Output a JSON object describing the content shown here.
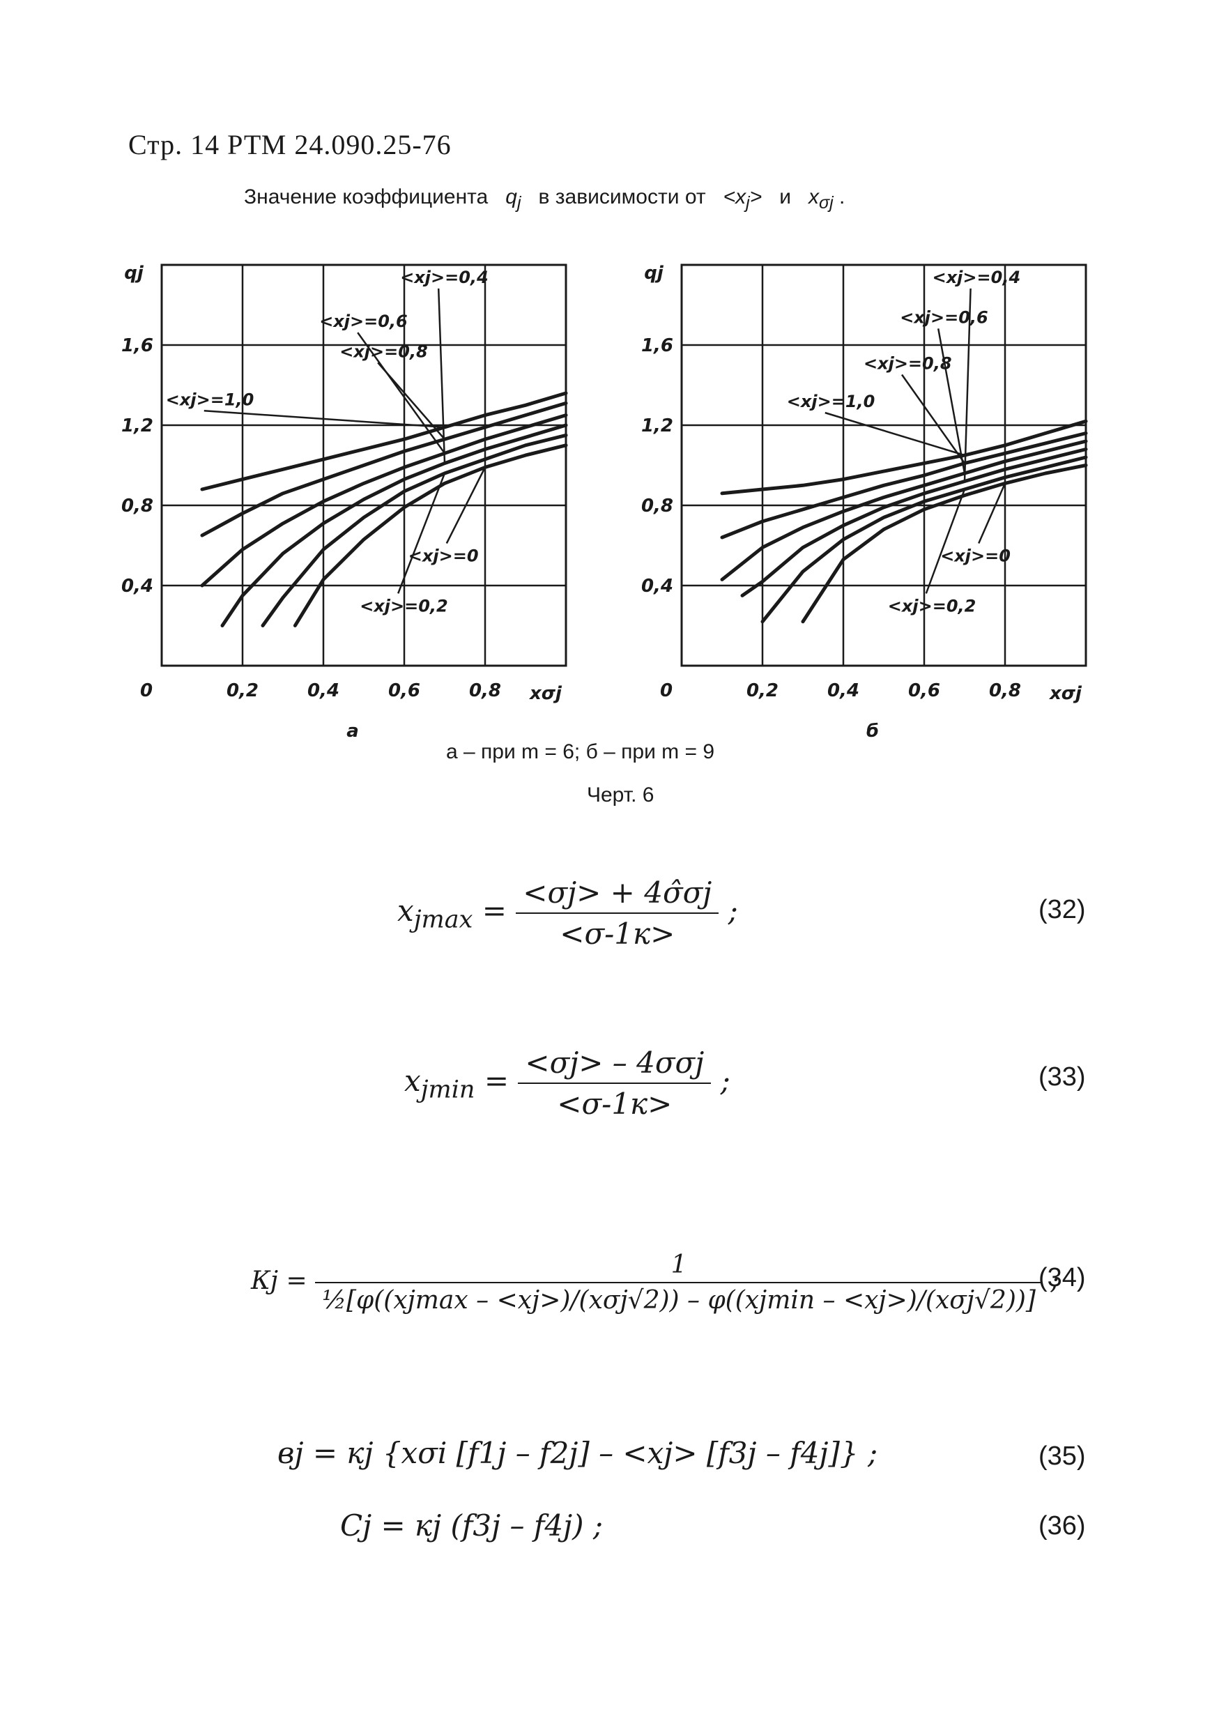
{
  "header": "Стр. 14 РТМ 24.090.25-76",
  "figure_title": {
    "prefix": "Значение коэффициента",
    "qj": "q",
    "qj_sub": "j",
    "middle": "в зависимости от",
    "xj": "<x",
    "xj_sub": "j",
    "xj_close": ">",
    "and": "и",
    "xs": "x",
    "xs_sub": "σj",
    "end": "."
  },
  "chart_data": [
    {
      "type": "line",
      "panel_label": "а",
      "ylabel": "qj",
      "xlabel": "xσj",
      "xlim": [
        0,
        1.0
      ],
      "ylim": [
        0,
        2.0
      ],
      "x_ticks": [
        "0",
        "0,2",
        "0,4",
        "0,6",
        "0,8"
      ],
      "y_ticks": [
        "0,4",
        "0,8",
        "1,2",
        "1,6"
      ],
      "grid": true,
      "series": [
        {
          "name": "<xj>=1,0",
          "x": [
            0.1,
            0.2,
            0.3,
            0.4,
            0.5,
            0.6,
            0.7,
            0.8,
            0.9,
            1.0
          ],
          "y": [
            0.88,
            0.93,
            0.98,
            1.03,
            1.08,
            1.13,
            1.19,
            1.25,
            1.3,
            1.36
          ]
        },
        {
          "name": "<xj>=0,8",
          "x": [
            0.1,
            0.2,
            0.3,
            0.4,
            0.5,
            0.6,
            0.7,
            0.8,
            0.9,
            1.0
          ],
          "y": [
            0.65,
            0.76,
            0.86,
            0.93,
            1.0,
            1.07,
            1.13,
            1.19,
            1.25,
            1.31
          ]
        },
        {
          "name": "<xj>=0,6",
          "x": [
            0.1,
            0.2,
            0.3,
            0.4,
            0.5,
            0.6,
            0.7,
            0.8,
            0.9,
            1.0
          ],
          "y": [
            0.4,
            0.58,
            0.71,
            0.82,
            0.91,
            0.99,
            1.06,
            1.13,
            1.19,
            1.25
          ]
        },
        {
          "name": "<xj>=0,4",
          "x": [
            0.15,
            0.2,
            0.3,
            0.4,
            0.5,
            0.6,
            0.7,
            0.8,
            0.9,
            1.0
          ],
          "y": [
            0.2,
            0.35,
            0.56,
            0.71,
            0.83,
            0.93,
            1.01,
            1.08,
            1.14,
            1.2
          ]
        },
        {
          "name": "<xj>=0,2",
          "x": [
            0.25,
            0.3,
            0.4,
            0.5,
            0.6,
            0.7,
            0.8,
            0.9,
            1.0
          ],
          "y": [
            0.2,
            0.34,
            0.58,
            0.74,
            0.87,
            0.96,
            1.03,
            1.1,
            1.15
          ]
        },
        {
          "name": "<xj>=0",
          "x": [
            0.33,
            0.4,
            0.5,
            0.6,
            0.7,
            0.8,
            0.9,
            1.0
          ],
          "y": [
            0.2,
            0.43,
            0.63,
            0.79,
            0.91,
            0.99,
            1.05,
            1.1
          ]
        }
      ],
      "annotations": [
        "<xj>=1,0",
        "<xj>=0,8",
        "<xj>=0,6",
        "<xj>=0,4",
        "<xj>=0",
        "<xj>=0,2"
      ]
    },
    {
      "type": "line",
      "panel_label": "б",
      "ylabel": "qj",
      "xlabel": "xσj",
      "xlim": [
        0,
        1.0
      ],
      "ylim": [
        0,
        2.0
      ],
      "x_ticks": [
        "0",
        "0,2",
        "0,4",
        "0,6",
        "0,8"
      ],
      "y_ticks": [
        "0,4",
        "0,8",
        "1,2",
        "1,6"
      ],
      "grid": true,
      "series": [
        {
          "name": "<xj>=1,0",
          "x": [
            0.1,
            0.2,
            0.3,
            0.4,
            0.5,
            0.6,
            0.7,
            0.8,
            0.9,
            1.0
          ],
          "y": [
            0.86,
            0.88,
            0.9,
            0.93,
            0.97,
            1.01,
            1.05,
            1.1,
            1.16,
            1.22
          ]
        },
        {
          "name": "<xj>=0,8",
          "x": [
            0.1,
            0.2,
            0.3,
            0.4,
            0.5,
            0.6,
            0.7,
            0.8,
            0.9,
            1.0
          ],
          "y": [
            0.64,
            0.72,
            0.78,
            0.84,
            0.9,
            0.95,
            1.01,
            1.06,
            1.11,
            1.16
          ]
        },
        {
          "name": "<xj>=0,6",
          "x": [
            0.1,
            0.2,
            0.3,
            0.4,
            0.5,
            0.6,
            0.7,
            0.8,
            0.9,
            1.0
          ],
          "y": [
            0.43,
            0.59,
            0.69,
            0.77,
            0.84,
            0.9,
            0.96,
            1.02,
            1.07,
            1.12
          ]
        },
        {
          "name": "<xj>=0,4",
          "x": [
            0.15,
            0.2,
            0.3,
            0.4,
            0.5,
            0.6,
            0.7,
            0.8,
            0.9,
            1.0
          ],
          "y": [
            0.35,
            0.42,
            0.59,
            0.7,
            0.79,
            0.86,
            0.92,
            0.98,
            1.03,
            1.08
          ]
        },
        {
          "name": "<xj>=0,2",
          "x": [
            0.2,
            0.3,
            0.4,
            0.5,
            0.6,
            0.7,
            0.8,
            0.9,
            1.0
          ],
          "y": [
            0.22,
            0.47,
            0.63,
            0.74,
            0.82,
            0.88,
            0.94,
            0.99,
            1.04
          ]
        },
        {
          "name": "<xj>=0",
          "x": [
            0.3,
            0.4,
            0.5,
            0.6,
            0.7,
            0.8,
            0.9,
            1.0
          ],
          "y": [
            0.22,
            0.53,
            0.68,
            0.78,
            0.85,
            0.91,
            0.96,
            1.0
          ]
        }
      ],
      "annotations": [
        "<xj>=0,4",
        "<xj>=0,6",
        "<xj>=0,8",
        "<xj>=1,0",
        "<xj>=0",
        "<xj>=0,2"
      ]
    }
  ],
  "captions": {
    "variants": "а – при m = 6; б – при m = 9",
    "figure_number": "Черт. 6"
  },
  "equations": [
    {
      "number": "(32)",
      "lhs": "x",
      "lhs_sub": "jmax",
      "numerator": "<σj> + 4σ̂σj",
      "denominator": "<σ-1к>",
      "tail": ";"
    },
    {
      "number": "(33)",
      "lhs": "x",
      "lhs_sub": "jmin",
      "numerator": "<σj> – 4σσj",
      "denominator": "<σ-1к>",
      "tail": ";"
    },
    {
      "number": "(34)",
      "lhs": "Кj =",
      "numerator": "1",
      "denominator": "½[φ((xjmax – <xj>)/(xσj√2)) – φ((xjmin – <xj>)/(xσj√2))]",
      "tail": ";"
    },
    {
      "number": "(35)",
      "text": "вj = кj {xσi [f1j – f2j] – <xj> [f3j – f4j]} ;"
    },
    {
      "number": "(36)",
      "text": "Cj = кj (f3j – f4j) ;"
    }
  ]
}
